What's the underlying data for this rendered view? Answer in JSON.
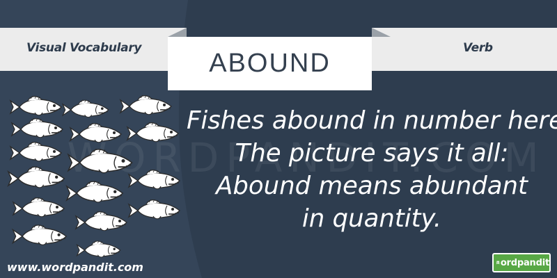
{
  "header": {
    "left_label": "Visual Vocabulary",
    "word": "ABOUND",
    "right_label": "Verb"
  },
  "caption": {
    "lines": [
      "Fishes abound in number here!",
      "The picture says it all:",
      "Abound means abundant",
      "in quantity."
    ]
  },
  "watermark": "WORDPANDIT.COM",
  "footer": {
    "website": "www.wordpandit.com",
    "logo_text": "ordpandit"
  },
  "colors": {
    "background": "#2e3d4f",
    "ribbon": "#ececec",
    "text_dark": "#2d3b4c",
    "logo_green": "#58a845"
  },
  "illustration": {
    "icon": "fish-icon",
    "fish_count": 16
  }
}
